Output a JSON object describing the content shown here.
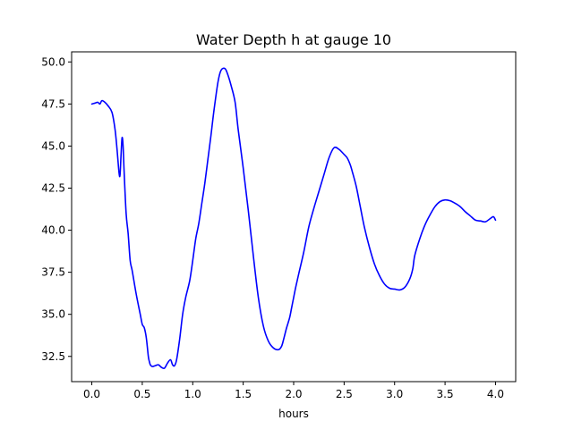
{
  "chart_data": {
    "type": "line",
    "title": "Water Depth h at gauge 10",
    "xlabel": "hours",
    "ylabel": "",
    "xlim": [
      -0.2,
      4.2
    ],
    "ylim": [
      31.0,
      50.6
    ],
    "grid": false,
    "x_ticks": [
      0.0,
      0.5,
      1.0,
      1.5,
      2.0,
      2.5,
      3.0,
      3.5,
      4.0
    ],
    "x_tick_labels": [
      "0.0",
      "0.5",
      "1.0",
      "1.5",
      "2.0",
      "2.5",
      "3.0",
      "3.5",
      "4.0"
    ],
    "y_ticks": [
      32.5,
      35.0,
      37.5,
      40.0,
      42.5,
      45.0,
      47.5,
      50.0
    ],
    "y_tick_labels": [
      "32.5",
      "35.0",
      "37.5",
      "40.0",
      "42.5",
      "45.0",
      "47.5",
      "50.0"
    ],
    "series": [
      {
        "color": "#0000ff",
        "x": [
          0.0,
          0.03,
          0.06,
          0.08,
          0.1,
          0.13,
          0.16,
          0.2,
          0.23,
          0.25,
          0.27,
          0.28,
          0.29,
          0.3,
          0.31,
          0.32,
          0.34,
          0.36,
          0.38,
          0.4,
          0.44,
          0.48,
          0.5,
          0.52,
          0.54,
          0.56,
          0.57,
          0.58,
          0.6,
          0.63,
          0.66,
          0.69,
          0.72,
          0.75,
          0.78,
          0.8,
          0.82,
          0.84,
          0.87,
          0.9,
          0.93,
          0.97,
          1.0,
          1.03,
          1.06,
          1.09,
          1.12,
          1.15,
          1.18,
          1.21,
          1.25,
          1.28,
          1.32,
          1.35,
          1.38,
          1.42,
          1.45,
          1.5,
          1.55,
          1.6,
          1.65,
          1.7,
          1.75,
          1.8,
          1.85,
          1.88,
          1.9,
          1.93,
          1.96,
          1.98,
          2.0,
          2.02,
          2.05,
          2.1,
          2.15,
          2.2,
          2.25,
          2.3,
          2.35,
          2.4,
          2.45,
          2.5,
          2.53,
          2.56,
          2.58,
          2.62,
          2.66,
          2.7,
          2.75,
          2.8,
          2.85,
          2.9,
          2.95,
          3.0,
          3.05,
          3.1,
          3.15,
          3.18,
          3.2,
          3.25,
          3.3,
          3.35,
          3.4,
          3.45,
          3.5,
          3.55,
          3.6,
          3.65,
          3.7,
          3.75,
          3.8,
          3.85,
          3.9,
          3.95,
          3.98,
          4.0
        ],
        "y": [
          47.5,
          47.55,
          47.6,
          47.5,
          47.7,
          47.6,
          47.4,
          47.0,
          46.0,
          44.8,
          43.4,
          43.3,
          44.5,
          45.5,
          45.0,
          43.5,
          41.0,
          39.8,
          38.2,
          37.6,
          36.2,
          35.0,
          34.4,
          34.2,
          33.6,
          32.5,
          32.2,
          32.0,
          31.9,
          31.95,
          32.0,
          31.85,
          31.8,
          32.1,
          32.3,
          32.0,
          31.95,
          32.3,
          33.5,
          35.0,
          36.0,
          37.0,
          38.2,
          39.5,
          40.4,
          41.6,
          42.8,
          44.2,
          45.6,
          47.1,
          48.8,
          49.5,
          49.6,
          49.2,
          48.6,
          47.6,
          46.0,
          43.7,
          41.2,
          38.5,
          36.0,
          34.3,
          33.4,
          33.0,
          32.9,
          33.1,
          33.5,
          34.2,
          34.8,
          35.4,
          36.0,
          36.6,
          37.4,
          38.7,
          40.2,
          41.3,
          42.3,
          43.3,
          44.3,
          44.9,
          44.8,
          44.5,
          44.3,
          43.9,
          43.5,
          42.6,
          41.4,
          40.2,
          39.0,
          38.0,
          37.3,
          36.8,
          36.55,
          36.5,
          36.45,
          36.6,
          37.1,
          37.7,
          38.5,
          39.5,
          40.3,
          40.9,
          41.4,
          41.7,
          41.8,
          41.75,
          41.6,
          41.4,
          41.1,
          40.85,
          40.6,
          40.55,
          40.5,
          40.7,
          40.8,
          40.6
        ]
      }
    ]
  }
}
